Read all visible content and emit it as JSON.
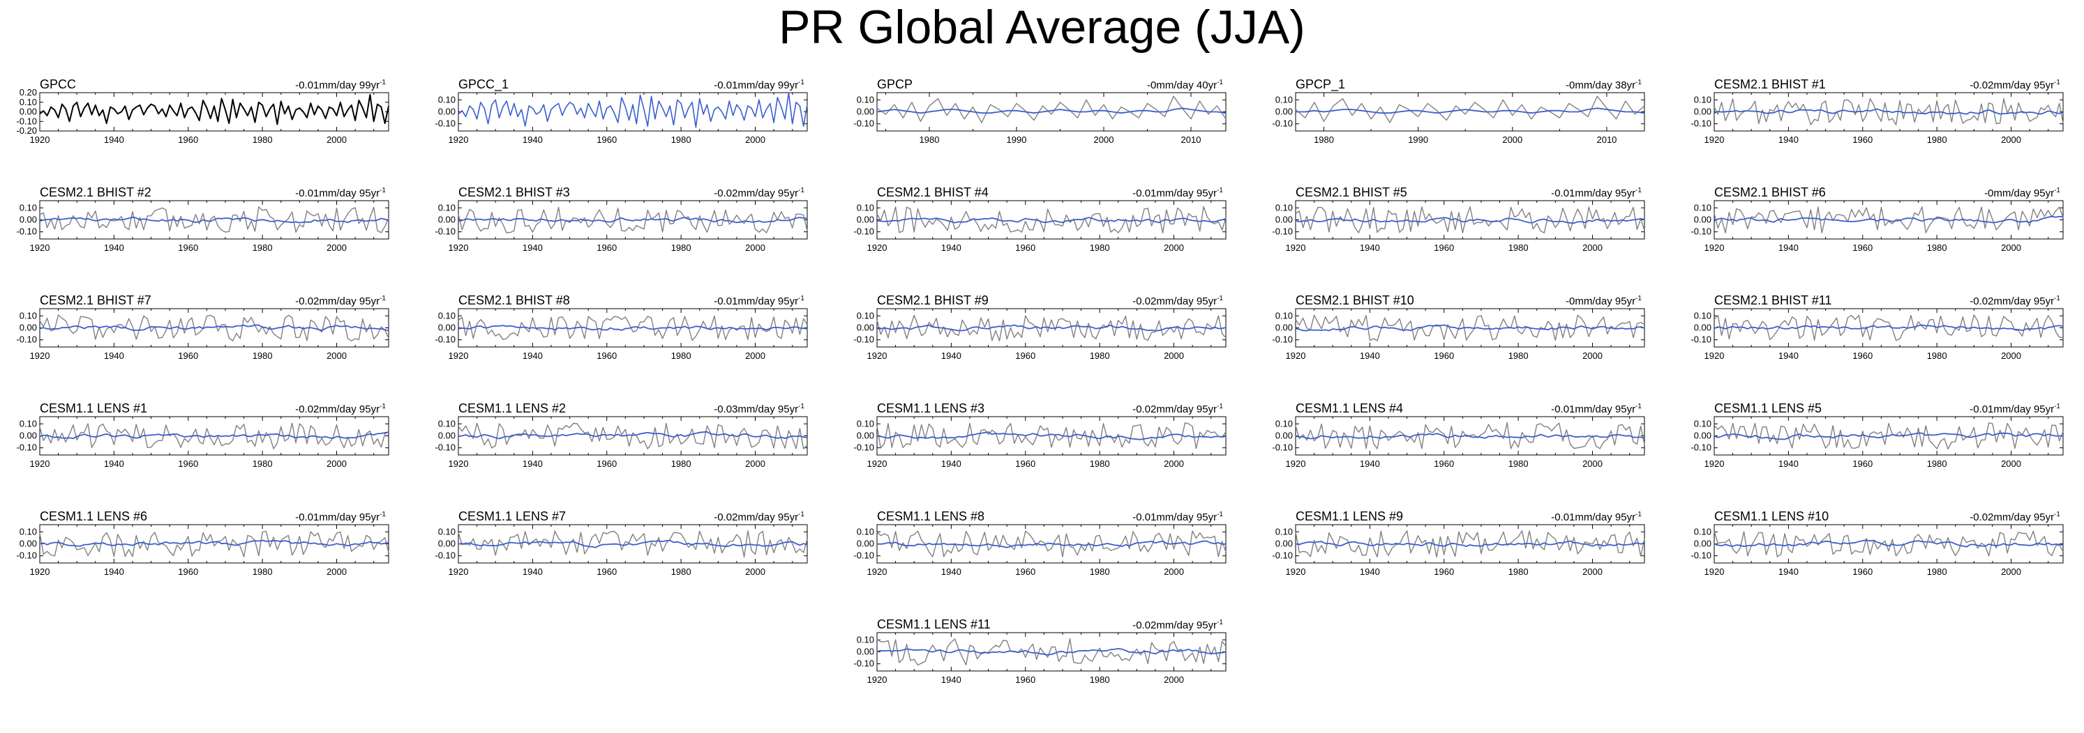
{
  "page": {
    "title": "PR Global Average (JJA)"
  },
  "colors": {
    "obs": "#000000",
    "model": "#808080",
    "trend_smooth": "#3a5fcd",
    "blue_series": "#3a5fcd",
    "axis": "#000000"
  },
  "chart_data": [
    {
      "type": "line",
      "title": "GPCC",
      "trend": "-0.01mm/day 99yr",
      "trend_sup": "-1",
      "x_start": 1920,
      "x_end": 2014,
      "xticks": [
        1920,
        1940,
        1960,
        1980,
        2000
      ],
      "ylim": [
        -0.2,
        0.2
      ],
      "yticks": [
        0.2,
        0.1,
        0.0,
        -0.1,
        -0.2
      ],
      "ytick_labels": [
        "0.20",
        "0.10",
        "0.00",
        "-0.10",
        "-0.20"
      ],
      "series": [
        {
          "name": "GPCC",
          "style": "obs",
          "values": [
            -0.02,
            0.01,
            -0.04,
            0.05,
            0.02,
            -0.06,
            0.08,
            0.03,
            -0.1,
            0.06,
            0.1,
            -0.05,
            0.04,
            0.09,
            -0.03,
            0.07,
            -0.04,
            0.02,
            -0.12,
            0.05,
            0.03,
            -0.02,
            0.0,
            0.06,
            -0.08,
            0.02,
            0.05,
            0.07,
            -0.03,
            0.04,
            0.08,
            0.06,
            -0.02,
            0.03,
            -0.05,
            0.07,
            0.01,
            -0.04,
            0.09,
            -0.06,
            0.03,
            0.05,
            -0.01,
            -0.09,
            0.12,
            0.04,
            -0.07,
            0.06,
            -0.1,
            0.14,
            0.02,
            -0.12,
            0.13,
            -0.06,
            0.09,
            0.03,
            -0.04,
            0.05,
            -0.11,
            0.1,
            0.07,
            -0.05,
            0.03,
            0.08,
            -0.13,
            0.11,
            -0.02,
            0.06,
            -0.08,
            0.02,
            0.04,
            0.0,
            -0.06,
            0.09,
            -0.03,
            0.06,
            0.02,
            -0.07,
            0.05,
            0.03,
            -0.04,
            0.1,
            -0.05,
            0.02,
            0.07,
            -0.09,
            0.12,
            0.04,
            -0.06,
            0.18,
            -0.1,
            0.08,
            0.05,
            -0.12,
            0.06
          ]
        }
      ]
    },
    {
      "type": "line",
      "title": "GPCC_1",
      "trend": "-0.01mm/day 99yr",
      "trend_sup": "-1",
      "x_start": 1920,
      "x_end": 2014,
      "xticks": [
        1920,
        1940,
        1960,
        1980,
        2000
      ],
      "ylim": [
        -0.16,
        0.16
      ],
      "yticks": [
        0.1,
        0.0,
        -0.1
      ],
      "ytick_labels": [
        "0.10",
        "0.00",
        "-0.10"
      ],
      "series": [
        {
          "name": "GPCC_1",
          "style": "blue",
          "values": [
            -0.02,
            0.01,
            -0.04,
            0.05,
            0.02,
            -0.06,
            0.08,
            0.03,
            -0.1,
            0.06,
            0.1,
            -0.05,
            0.04,
            0.09,
            -0.03,
            0.07,
            -0.04,
            0.02,
            -0.12,
            0.05,
            0.03,
            -0.02,
            0.0,
            0.06,
            -0.08,
            0.02,
            0.05,
            0.07,
            -0.03,
            0.04,
            0.08,
            0.06,
            -0.02,
            0.03,
            -0.05,
            0.07,
            0.01,
            -0.04,
            0.09,
            -0.06,
            0.03,
            0.05,
            -0.01,
            -0.09,
            0.12,
            0.04,
            -0.07,
            0.06,
            -0.1,
            0.14,
            0.02,
            -0.12,
            0.13,
            -0.06,
            0.09,
            0.03,
            -0.04,
            0.05,
            -0.11,
            0.1,
            0.07,
            -0.05,
            0.03,
            0.08,
            -0.13,
            0.11,
            -0.02,
            0.06,
            -0.08,
            0.02,
            0.04,
            0.0,
            -0.06,
            0.09,
            -0.03,
            0.06,
            0.02,
            -0.07,
            0.05,
            0.03,
            -0.04,
            0.1,
            -0.05,
            0.02,
            0.07,
            -0.09,
            0.12,
            0.04,
            -0.06,
            0.16,
            -0.1,
            0.08,
            0.05,
            -0.12,
            0.06
          ]
        }
      ]
    },
    {
      "type": "line",
      "title": "GPCP",
      "trend": "-0mm/day 40yr",
      "trend_sup": "-1",
      "x_start": 1974,
      "x_end": 2014,
      "xticks": [
        1980,
        1990,
        2000,
        2010
      ],
      "ylim": [
        -0.16,
        0.16
      ],
      "yticks": [
        0.1,
        0.0,
        -0.1
      ],
      "ytick_labels": [
        "0.10",
        "0.00",
        "-0.10"
      ],
      "series": [
        {
          "name": "GPCP",
          "style": "model",
          "values": [
            0.03,
            -0.02,
            0.06,
            -0.05,
            0.08,
            -0.08,
            0.05,
            0.11,
            -0.03,
            0.07,
            -0.06,
            0.04,
            -0.09,
            0.06,
            0.02,
            -0.04,
            0.07,
            0.01,
            -0.07,
            0.05,
            -0.02,
            0.08,
            0.02,
            -0.05,
            0.1,
            -0.03,
            0.06,
            -0.06,
            0.04,
            0.0,
            -0.05,
            0.07,
            0.02,
            -0.04,
            0.13,
            0.03,
            -0.06,
            0.09,
            -0.02,
            0.05,
            -0.06
          ]
        },
        {
          "name": "smoothed",
          "style": "trend_smooth",
          "values": [
            0.0,
            0.01,
            0.02,
            0.01,
            0.0,
            -0.01,
            0.0,
            0.01,
            0.02,
            0.02,
            0.01,
            0.0,
            -0.01,
            -0.01,
            0.0,
            0.01,
            0.01,
            0.0,
            -0.01,
            0.0,
            0.01,
            0.02,
            0.01,
            0.0,
            0.0,
            0.01,
            0.01,
            0.0,
            -0.01,
            0.0,
            0.01,
            0.01,
            0.0,
            0.0,
            0.02,
            0.03,
            0.02,
            0.01,
            0.0,
            0.0,
            -0.01
          ]
        }
      ]
    },
    {
      "type": "line",
      "title": "GPCP_1",
      "trend": "-0mm/day 38yr",
      "trend_sup": "-1",
      "x_start": 1977,
      "x_end": 2014,
      "xticks": [
        1980,
        1990,
        2000,
        2010
      ],
      "ylim": [
        -0.16,
        0.16
      ],
      "yticks": [
        0.1,
        0.0,
        -0.1
      ],
      "ytick_labels": [
        "0.10",
        "0.00",
        "-0.10"
      ],
      "series": [
        {
          "name": "GPCP_1",
          "style": "model",
          "values": [
            0.02,
            -0.05,
            0.08,
            -0.08,
            0.05,
            0.11,
            -0.03,
            0.07,
            -0.06,
            0.04,
            -0.09,
            0.06,
            0.02,
            -0.04,
            0.07,
            0.01,
            -0.07,
            0.05,
            -0.02,
            0.08,
            0.02,
            -0.05,
            0.1,
            -0.03,
            0.06,
            -0.06,
            0.04,
            0.0,
            -0.05,
            0.07,
            0.02,
            -0.04,
            0.13,
            0.03,
            -0.06,
            0.09,
            -0.02,
            0.05
          ]
        },
        {
          "name": "smoothed",
          "style": "trend_smooth",
          "values": [
            0.0,
            0.0,
            0.01,
            0.0,
            0.01,
            0.02,
            0.02,
            0.01,
            0.0,
            -0.01,
            -0.01,
            0.0,
            0.01,
            0.01,
            0.0,
            -0.01,
            0.0,
            0.01,
            0.02,
            0.01,
            0.0,
            0.0,
            0.01,
            0.01,
            0.0,
            -0.01,
            0.0,
            0.01,
            0.01,
            0.0,
            0.0,
            0.02,
            0.03,
            0.02,
            0.01,
            0.0,
            0.0,
            -0.01
          ]
        }
      ]
    },
    {
      "type": "line",
      "title": "CESM2.1 BHIST #1",
      "trend": "-0.02mm/day 95yr",
      "trend_sup": "-1",
      "x_start": 1920,
      "x_end": 2014,
      "xticks": [
        1920,
        1940,
        1960,
        1980,
        2000
      ],
      "ylim": [
        -0.16,
        0.16
      ],
      "yticks": [
        0.1,
        0.0,
        -0.1
      ],
      "ytick_labels": [
        "0.10",
        "0.00",
        "-0.10"
      ],
      "series": []
    },
    {
      "type": "line",
      "title": "CESM2.1 BHIST #2",
      "trend": "-0.01mm/day 95yr",
      "trend_sup": "-1",
      "x_start": 1920,
      "x_end": 2014,
      "xticks": [
        1920,
        1940,
        1960,
        1980,
        2000
      ],
      "ylim": [
        -0.16,
        0.16
      ],
      "yticks": [
        0.1,
        0.0,
        -0.1
      ],
      "ytick_labels": [
        "0.10",
        "0.00",
        "-0.10"
      ],
      "series": []
    },
    {
      "type": "line",
      "title": "CESM2.1 BHIST #3",
      "trend": "-0.02mm/day 95yr",
      "trend_sup": "-1",
      "x_start": 1920,
      "x_end": 2014,
      "xticks": [
        1920,
        1940,
        1960,
        1980,
        2000
      ],
      "ylim": [
        -0.16,
        0.16
      ],
      "yticks": [
        0.1,
        0.0,
        -0.1
      ],
      "ytick_labels": [
        "0.10",
        "0.00",
        "-0.10"
      ],
      "series": []
    },
    {
      "type": "line",
      "title": "CESM2.1 BHIST #4",
      "trend": "-0.01mm/day 95yr",
      "trend_sup": "-1",
      "x_start": 1920,
      "x_end": 2014,
      "xticks": [
        1920,
        1940,
        1960,
        1980,
        2000
      ],
      "ylim": [
        -0.16,
        0.16
      ],
      "yticks": [
        0.1,
        0.0,
        -0.1
      ],
      "ytick_labels": [
        "0.10",
        "0.00",
        "-0.10"
      ],
      "series": []
    },
    {
      "type": "line",
      "title": "CESM2.1 BHIST #5",
      "trend": "-0.01mm/day 95yr",
      "trend_sup": "-1",
      "x_start": 1920,
      "x_end": 2014,
      "xticks": [
        1920,
        1940,
        1960,
        1980,
        2000
      ],
      "ylim": [
        -0.16,
        0.16
      ],
      "yticks": [
        0.1,
        0.0,
        -0.1
      ],
      "ytick_labels": [
        "0.10",
        "0.00",
        "-0.10"
      ],
      "series": []
    },
    {
      "type": "line",
      "title": "CESM2.1 BHIST #6",
      "trend": "-0mm/day 95yr",
      "trend_sup": "-1",
      "x_start": 1920,
      "x_end": 2014,
      "xticks": [
        1920,
        1940,
        1960,
        1980,
        2000
      ],
      "ylim": [
        -0.16,
        0.16
      ],
      "yticks": [
        0.1,
        0.0,
        -0.1
      ],
      "ytick_labels": [
        "0.10",
        "0.00",
        "-0.10"
      ],
      "series": []
    },
    {
      "type": "line",
      "title": "CESM2.1 BHIST #7",
      "trend": "-0.02mm/day 95yr",
      "trend_sup": "-1",
      "x_start": 1920,
      "x_end": 2014,
      "xticks": [
        1920,
        1940,
        1960,
        1980,
        2000
      ],
      "ylim": [
        -0.16,
        0.16
      ],
      "yticks": [
        0.1,
        0.0,
        -0.1
      ],
      "ytick_labels": [
        "0.10",
        "0.00",
        "-0.10"
      ],
      "series": []
    },
    {
      "type": "line",
      "title": "CESM2.1 BHIST #8",
      "trend": "-0.01mm/day 95yr",
      "trend_sup": "-1",
      "x_start": 1920,
      "x_end": 2014,
      "xticks": [
        1920,
        1940,
        1960,
        1980,
        2000
      ],
      "ylim": [
        -0.16,
        0.16
      ],
      "yticks": [
        0.1,
        0.0,
        -0.1
      ],
      "ytick_labels": [
        "0.10",
        "0.00",
        "-0.10"
      ],
      "series": []
    },
    {
      "type": "line",
      "title": "CESM2.1 BHIST #9",
      "trend": "-0.02mm/day 95yr",
      "trend_sup": "-1",
      "x_start": 1920,
      "x_end": 2014,
      "xticks": [
        1920,
        1940,
        1960,
        1980,
        2000
      ],
      "ylim": [
        -0.16,
        0.16
      ],
      "yticks": [
        0.1,
        0.0,
        -0.1
      ],
      "ytick_labels": [
        "0.10",
        "0.00",
        "-0.10"
      ],
      "series": []
    },
    {
      "type": "line",
      "title": "CESM2.1 BHIST #10",
      "trend": "-0mm/day 95yr",
      "trend_sup": "-1",
      "x_start": 1920,
      "x_end": 2014,
      "xticks": [
        1920,
        1940,
        1960,
        1980,
        2000
      ],
      "ylim": [
        -0.16,
        0.16
      ],
      "yticks": [
        0.1,
        0.0,
        -0.1
      ],
      "ytick_labels": [
        "0.10",
        "0.00",
        "-0.10"
      ],
      "series": []
    },
    {
      "type": "line",
      "title": "CESM2.1 BHIST #11",
      "trend": "-0.02mm/day 95yr",
      "trend_sup": "-1",
      "x_start": 1920,
      "x_end": 2014,
      "xticks": [
        1920,
        1940,
        1960,
        1980,
        2000
      ],
      "ylim": [
        -0.16,
        0.16
      ],
      "yticks": [
        0.1,
        0.0,
        -0.1
      ],
      "ytick_labels": [
        "0.10",
        "0.00",
        "-0.10"
      ],
      "series": []
    },
    {
      "type": "line",
      "title": "CESM1.1 LENS #1",
      "trend": "-0.02mm/day 95yr",
      "trend_sup": "-1",
      "x_start": 1920,
      "x_end": 2014,
      "xticks": [
        1920,
        1940,
        1960,
        1980,
        2000
      ],
      "ylim": [
        -0.16,
        0.16
      ],
      "yticks": [
        0.1,
        0.0,
        -0.1
      ],
      "ytick_labels": [
        "0.10",
        "0.00",
        "-0.10"
      ],
      "series": []
    },
    {
      "type": "line",
      "title": "CESM1.1 LENS #2",
      "trend": "-0.03mm/day 95yr",
      "trend_sup": "-1",
      "x_start": 1920,
      "x_end": 2014,
      "xticks": [
        1920,
        1940,
        1960,
        1980,
        2000
      ],
      "ylim": [
        -0.16,
        0.16
      ],
      "yticks": [
        0.1,
        0.0,
        -0.1
      ],
      "ytick_labels": [
        "0.10",
        "0.00",
        "-0.10"
      ],
      "series": []
    },
    {
      "type": "line",
      "title": "CESM1.1 LENS #3",
      "trend": "-0.02mm/day 95yr",
      "trend_sup": "-1",
      "x_start": 1920,
      "x_end": 2014,
      "xticks": [
        1920,
        1940,
        1960,
        1980,
        2000
      ],
      "ylim": [
        -0.16,
        0.16
      ],
      "yticks": [
        0.1,
        0.0,
        -0.1
      ],
      "ytick_labels": [
        "0.10",
        "0.00",
        "-0.10"
      ],
      "series": []
    },
    {
      "type": "line",
      "title": "CESM1.1 LENS #4",
      "trend": "-0.01mm/day 95yr",
      "trend_sup": "-1",
      "x_start": 1920,
      "x_end": 2014,
      "xticks": [
        1920,
        1940,
        1960,
        1980,
        2000
      ],
      "ylim": [
        -0.16,
        0.16
      ],
      "yticks": [
        0.1,
        0.0,
        -0.1
      ],
      "ytick_labels": [
        "0.10",
        "0.00",
        "-0.10"
      ],
      "series": []
    },
    {
      "type": "line",
      "title": "CESM1.1 LENS #5",
      "trend": "-0.01mm/day 95yr",
      "trend_sup": "-1",
      "x_start": 1920,
      "x_end": 2014,
      "xticks": [
        1920,
        1940,
        1960,
        1980,
        2000
      ],
      "ylim": [
        -0.16,
        0.16
      ],
      "yticks": [
        0.1,
        0.0,
        -0.1
      ],
      "ytick_labels": [
        "0.10",
        "0.00",
        "-0.10"
      ],
      "series": []
    },
    {
      "type": "line",
      "title": "CESM1.1 LENS #6",
      "trend": "-0.01mm/day 95yr",
      "trend_sup": "-1",
      "x_start": 1920,
      "x_end": 2014,
      "xticks": [
        1920,
        1940,
        1960,
        1980,
        2000
      ],
      "ylim": [
        -0.16,
        0.16
      ],
      "yticks": [
        0.1,
        0.0,
        -0.1
      ],
      "ytick_labels": [
        "0.10",
        "0.00",
        "-0.10"
      ],
      "series": []
    },
    {
      "type": "line",
      "title": "CESM1.1 LENS #7",
      "trend": "-0.02mm/day 95yr",
      "trend_sup": "-1",
      "x_start": 1920,
      "x_end": 2014,
      "xticks": [
        1920,
        1940,
        1960,
        1980,
        2000
      ],
      "ylim": [
        -0.16,
        0.16
      ],
      "yticks": [
        0.1,
        0.0,
        -0.1
      ],
      "ytick_labels": [
        "0.10",
        "0.00",
        "-0.10"
      ],
      "series": []
    },
    {
      "type": "line",
      "title": "CESM1.1 LENS #8",
      "trend": "-0.01mm/day 95yr",
      "trend_sup": "-1",
      "x_start": 1920,
      "x_end": 2014,
      "xticks": [
        1920,
        1940,
        1960,
        1980,
        2000
      ],
      "ylim": [
        -0.16,
        0.16
      ],
      "yticks": [
        0.1,
        0.0,
        -0.1
      ],
      "ytick_labels": [
        "0.10",
        "0.00",
        "-0.10"
      ],
      "series": []
    },
    {
      "type": "line",
      "title": "CESM1.1 LENS #9",
      "trend": "-0.01mm/day 95yr",
      "trend_sup": "-1",
      "x_start": 1920,
      "x_end": 2014,
      "xticks": [
        1920,
        1940,
        1960,
        1980,
        2000
      ],
      "ylim": [
        -0.16,
        0.16
      ],
      "yticks": [
        0.1,
        0.0,
        -0.1
      ],
      "ytick_labels": [
        "0.10",
        "0.00",
        "-0.10"
      ],
      "series": []
    },
    {
      "type": "line",
      "title": "CESM1.1 LENS #10",
      "trend": "-0.02mm/day 95yr",
      "trend_sup": "-1",
      "x_start": 1920,
      "x_end": 2014,
      "xticks": [
        1920,
        1940,
        1960,
        1980,
        2000
      ],
      "ylim": [
        -0.16,
        0.16
      ],
      "yticks": [
        0.1,
        0.0,
        -0.1
      ],
      "ytick_labels": [
        "0.10",
        "0.00",
        "-0.10"
      ],
      "series": []
    },
    {
      "type": "line",
      "title": "CESM1.1 LENS #11",
      "trend": "-0.02mm/day 95yr",
      "trend_sup": "-1",
      "x_start": 1920,
      "x_end": 2014,
      "xticks": [
        1920,
        1940,
        1960,
        1980,
        2000
      ],
      "ylim": [
        -0.16,
        0.16
      ],
      "yticks": [
        0.1,
        0.0,
        -0.1
      ],
      "ytick_labels": [
        "0.10",
        "0.00",
        "-0.10"
      ],
      "series": []
    }
  ]
}
